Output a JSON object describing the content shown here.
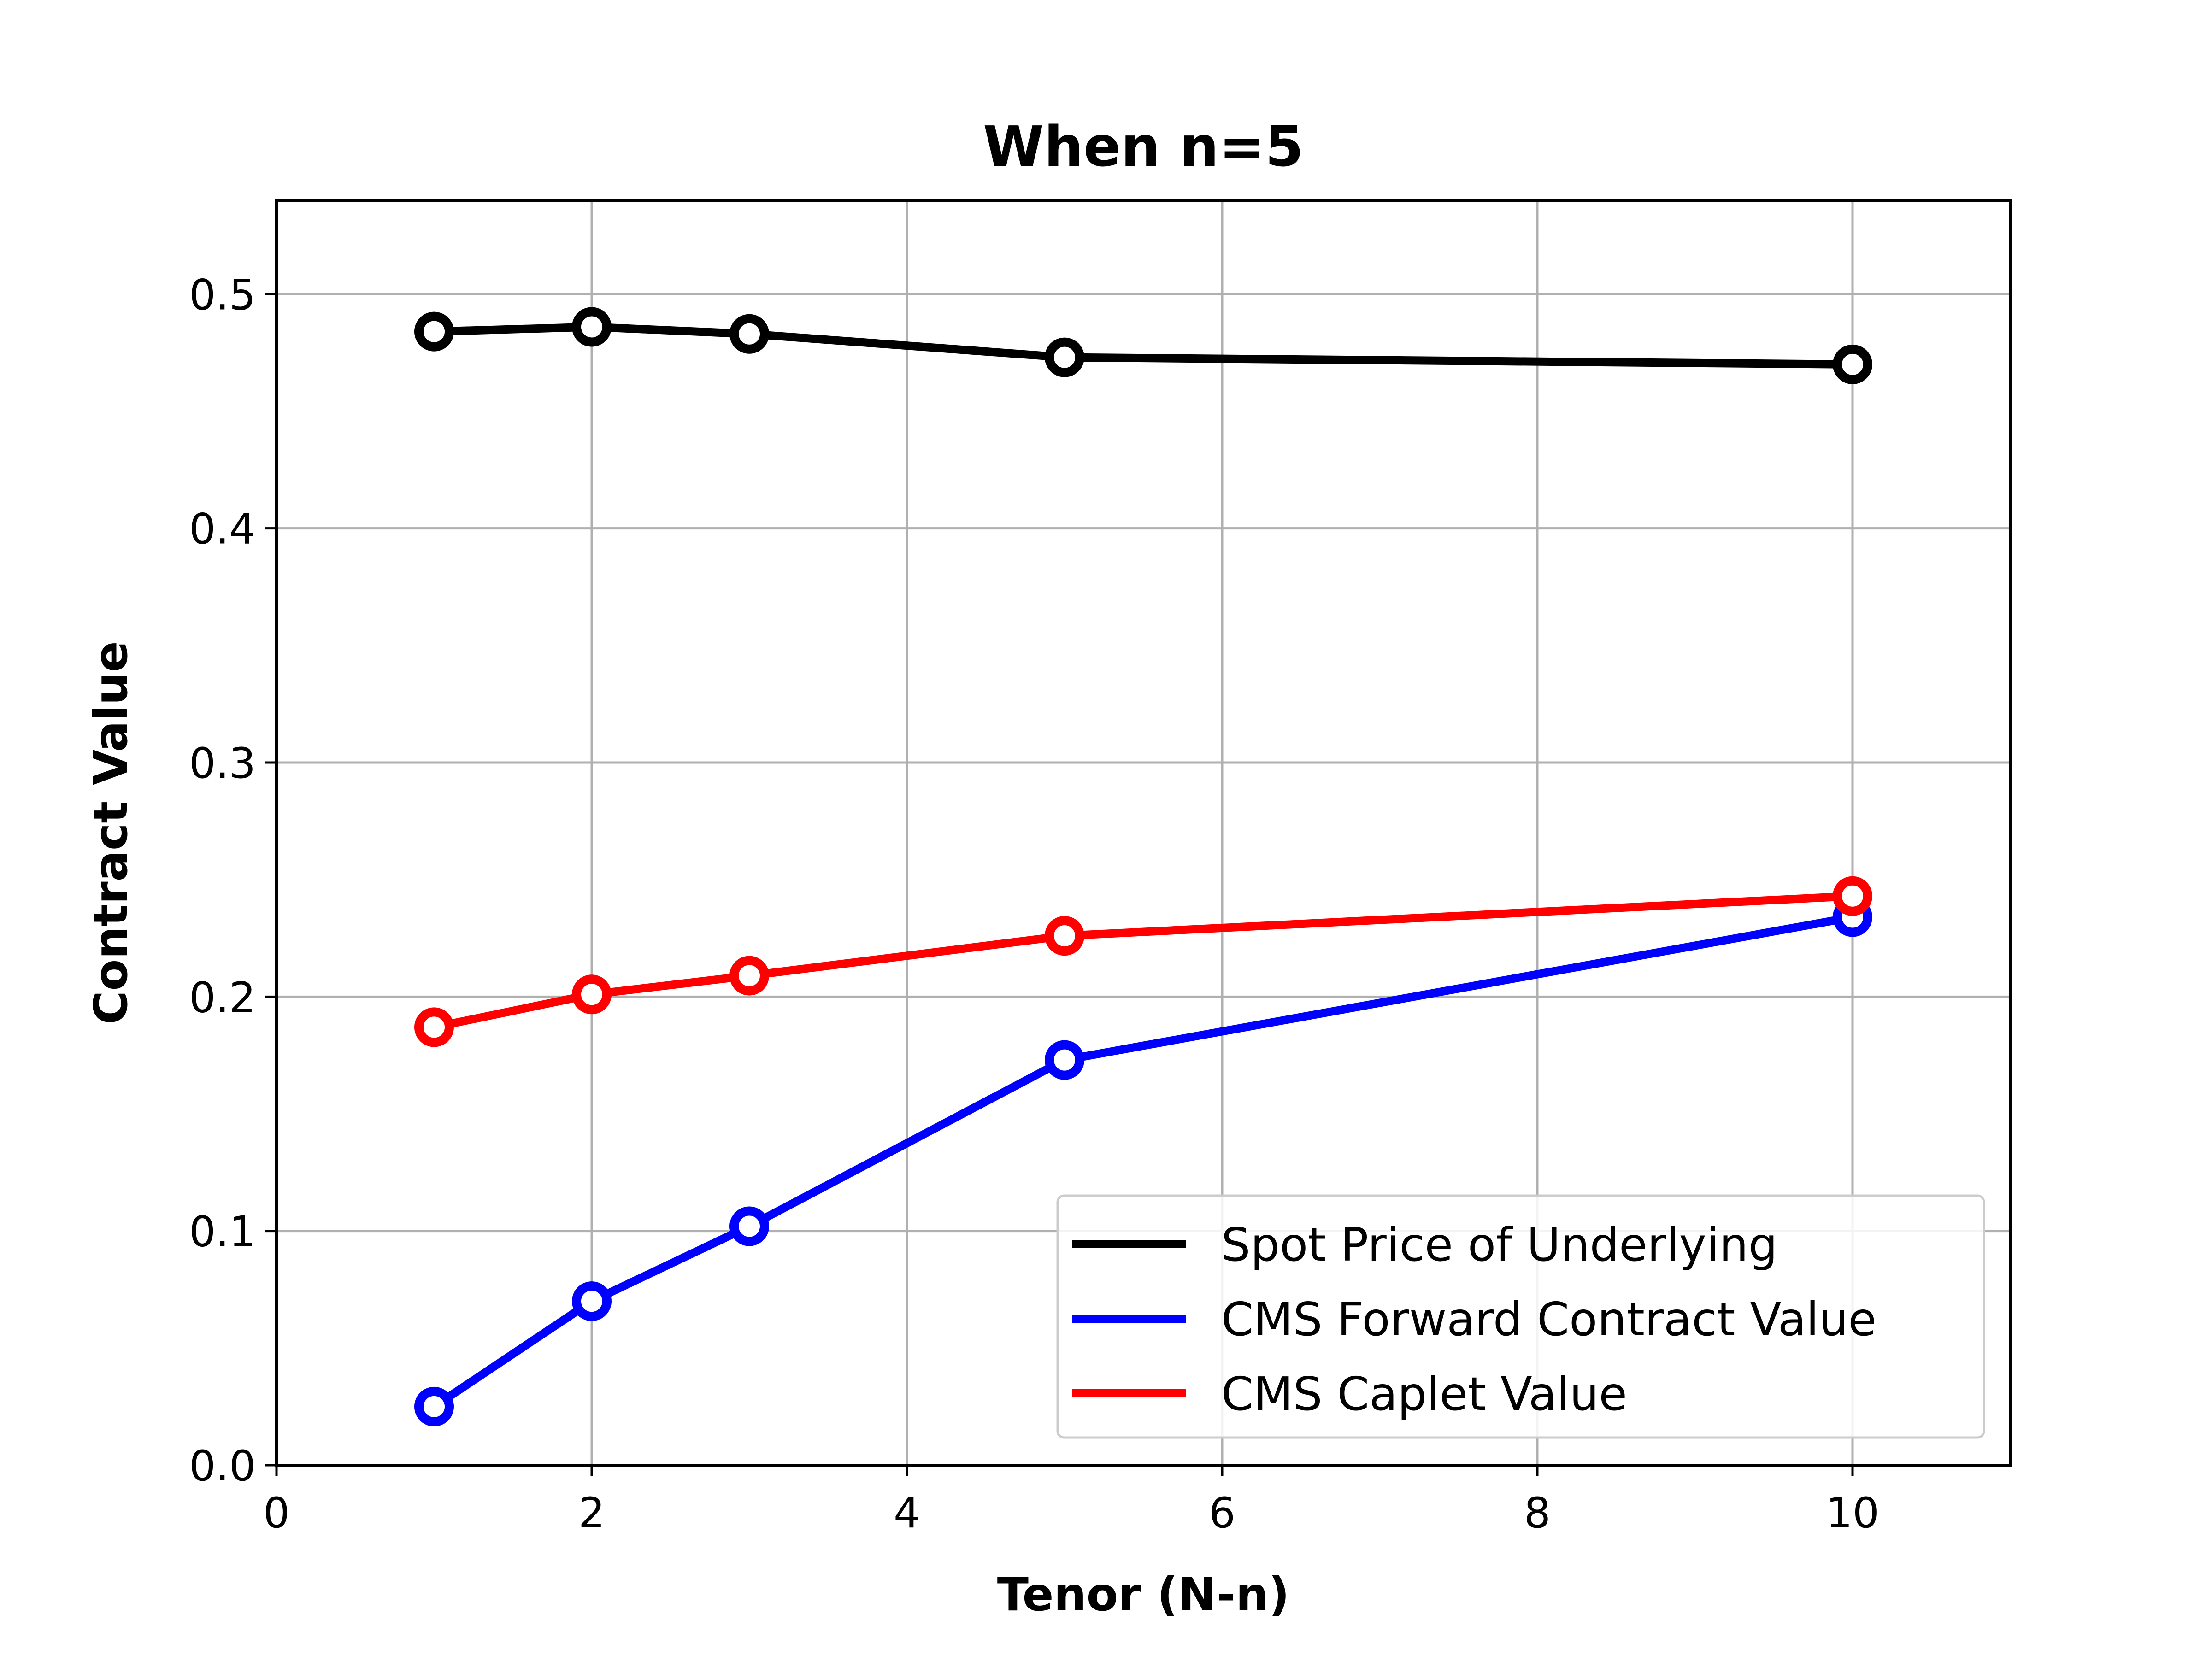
{
  "chart_data": {
    "type": "line",
    "title": "When n=5",
    "xlabel": "Tenor (N-n)",
    "ylabel": "Contract Value",
    "xlim": [
      0,
      11
    ],
    "ylim": [
      0,
      0.54
    ],
    "xticks": [
      0,
      2,
      4,
      6,
      8,
      10
    ],
    "xtick_labels": [
      "0",
      "2",
      "4",
      "6",
      "8",
      "10"
    ],
    "yticks": [
      0.0,
      0.1,
      0.2,
      0.3,
      0.4,
      0.5
    ],
    "ytick_labels": [
      "0.0",
      "0.1",
      "0.2",
      "0.3",
      "0.4",
      "0.5"
    ],
    "grid": true,
    "legend_position": "bottom-right",
    "x": [
      1,
      2,
      3,
      5,
      10
    ],
    "series": [
      {
        "name": "Spot Price of Underlying",
        "color": "#000000",
        "values": [
          0.484,
          0.486,
          0.483,
          0.473,
          0.47
        ]
      },
      {
        "name": "CMS Forward Contract Value",
        "color": "#0000ff",
        "values": [
          0.025,
          0.07,
          0.102,
          0.173,
          0.234
        ]
      },
      {
        "name": "CMS Caplet Value",
        "color": "#ff0000",
        "values": [
          0.187,
          0.201,
          0.209,
          0.226,
          0.243
        ]
      }
    ]
  }
}
